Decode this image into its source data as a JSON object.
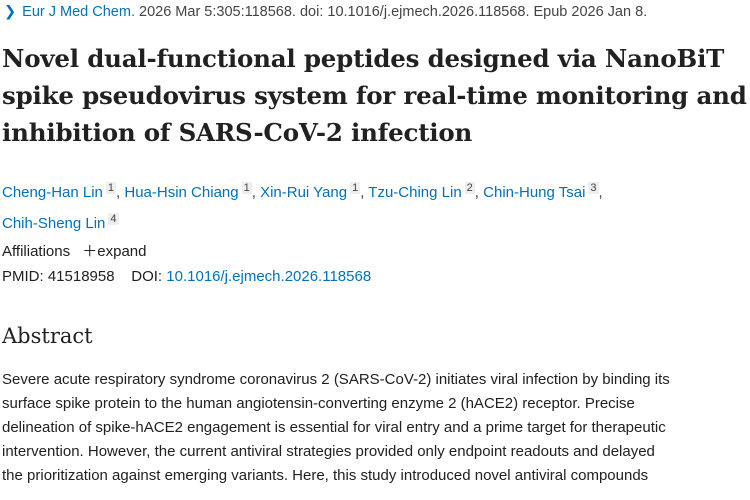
{
  "citation": {
    "journal": "Eur J Med Chem.",
    "details": "2026 Mar 5:305:118568. doi: 10.1016/j.ejmech.2026.118568. Epub 2026 Jan 8."
  },
  "title": "Novel dual-functional peptides designed via NanoBiT spike pseudovirus system for real-time monitoring and inhibition of SARS-CoV-2 infection",
  "authors": [
    {
      "name": "Cheng-Han Lin",
      "aff": "1"
    },
    {
      "name": "Hua-Hsin Chiang",
      "aff": "1"
    },
    {
      "name": "Xin-Rui Yang",
      "aff": "1"
    },
    {
      "name": "Tzu-Ching Lin",
      "aff": "2"
    },
    {
      "name": "Chin-Hung Tsai",
      "aff": "3"
    },
    {
      "name": "Chih-Sheng Lin",
      "aff": "4"
    }
  ],
  "affiliations": {
    "label": "Affiliations",
    "expand": "expand"
  },
  "ids": {
    "pmid_label": "PMID:",
    "pmid": "41518958",
    "doi_label": "DOI:",
    "doi": "10.1016/j.ejmech.2026.118568"
  },
  "abstract": {
    "heading": "Abstract",
    "lines": [
      "Severe acute respiratory syndrome coronavirus 2 (SARS-CoV-2) initiates viral infection by binding its",
      "surface spike protein to the human angiotensin-converting enzyme 2 (hACE2) receptor. Precise",
      "delineation of spike-hACE2 engagement is essential for viral entry and a prime target for therapeutic",
      "intervention. However, the current antiviral strategies provided only endpoint readouts and delayed",
      "the prioritization against emerging variants. Here, this study introduced novel antiviral compounds"
    ]
  }
}
